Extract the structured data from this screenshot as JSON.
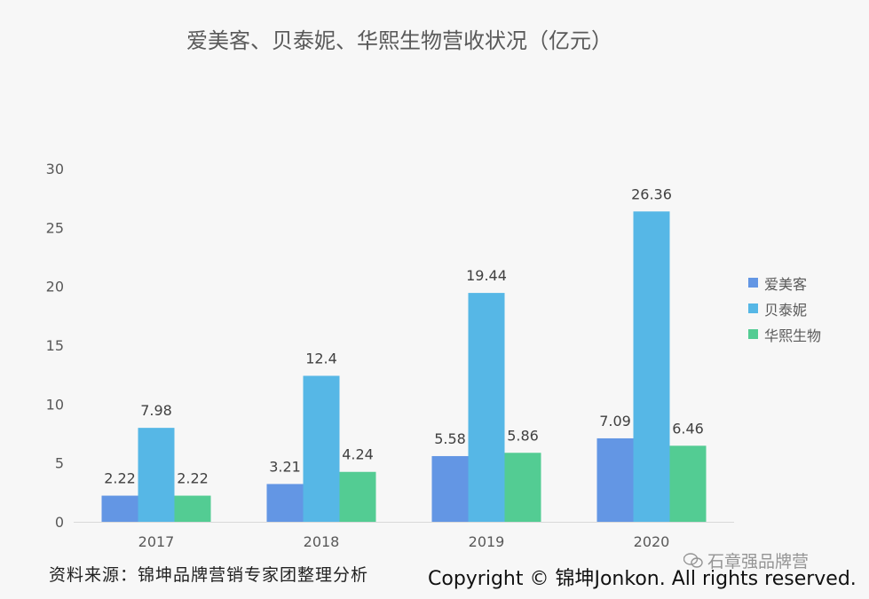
{
  "chart_data": {
    "type": "bar",
    "title": "爱美客、贝泰妮、华熙生物营收状况（亿元）",
    "categories": [
      "2017",
      "2018",
      "2019",
      "2020"
    ],
    "series": [
      {
        "name": "爱美客",
        "color": "#6396e4",
        "values": [
          2.22,
          3.21,
          5.58,
          7.09
        ],
        "labels": [
          "2.22",
          "3.21",
          "5.58",
          "7.09"
        ]
      },
      {
        "name": "贝泰妮",
        "color": "#56b7e6",
        "values": [
          7.98,
          12.4,
          19.44,
          26.36
        ],
        "labels": [
          "7.98",
          "12.4",
          "19.44",
          "26.36"
        ]
      },
      {
        "name": "华熙生物",
        "color": "#53cc93",
        "values": [
          2.22,
          4.24,
          5.86,
          6.46
        ],
        "labels": [
          "2.22",
          "4.24",
          "5.86",
          "6.46"
        ]
      }
    ],
    "yticks": [
      "0",
      "5",
      "10",
      "15",
      "20",
      "25",
      "30"
    ],
    "ylim": [
      0,
      30
    ],
    "grid": false,
    "legend_position": "right"
  },
  "footer": {
    "source": "资料来源：锦坤品牌营销专家团整理分析",
    "copyright": "Copyright © 锦坤Jonkon. All rights reserved.",
    "watermark": "石章强品牌营"
  },
  "icons": {
    "watermark_icon": "wechat-icon"
  }
}
